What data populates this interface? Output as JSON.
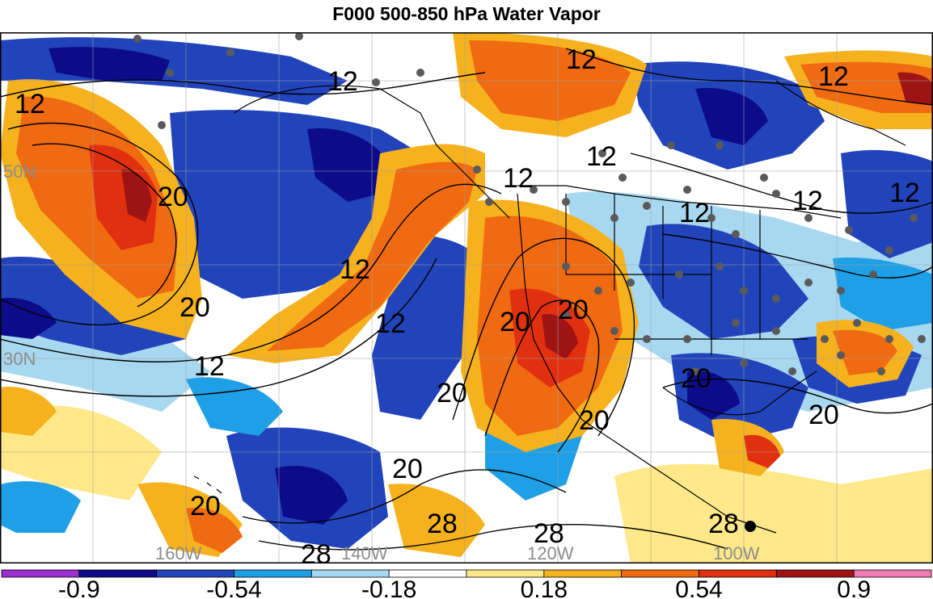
{
  "title": "F000 500-850 hPa Water Vapor",
  "map": {
    "contour_labels": [
      "12",
      "12",
      "12",
      "12",
      "12",
      "12",
      "12",
      "12",
      "12",
      "12",
      "12",
      "12",
      "20",
      "20",
      "20",
      "20",
      "20",
      "20",
      "20",
      "20",
      "20",
      "20",
      "28",
      "28",
      "28",
      "28"
    ],
    "lat_labels": [
      "50N",
      "30N"
    ],
    "lon_labels": [
      "160W",
      "140W",
      "120W",
      "100W"
    ]
  },
  "colorbar": {
    "tick_labels": [
      "-0.9",
      "-0.54",
      "-0.18",
      "0.18",
      "0.54",
      "0.9"
    ],
    "colors": [
      "#9b30d0",
      "#0c0c8a",
      "#2244bb",
      "#1f9fe6",
      "#a8d8f0",
      "#ffffff",
      "#ffe88a",
      "#f5b21e",
      "#f06a12",
      "#e03010",
      "#9e1414",
      "#f07ab4"
    ]
  },
  "colors": {
    "deep_blue": "#0c0c8a",
    "blue": "#2244bb",
    "light_blue": "#1f9fe6",
    "pale_blue": "#a8d8f0",
    "yellow": "#ffe88a",
    "orange": "#f5b21e",
    "red_orange": "#f06a12",
    "red": "#e03010",
    "dark_red": "#9e1414",
    "station_dot": "#5a5a5a"
  }
}
